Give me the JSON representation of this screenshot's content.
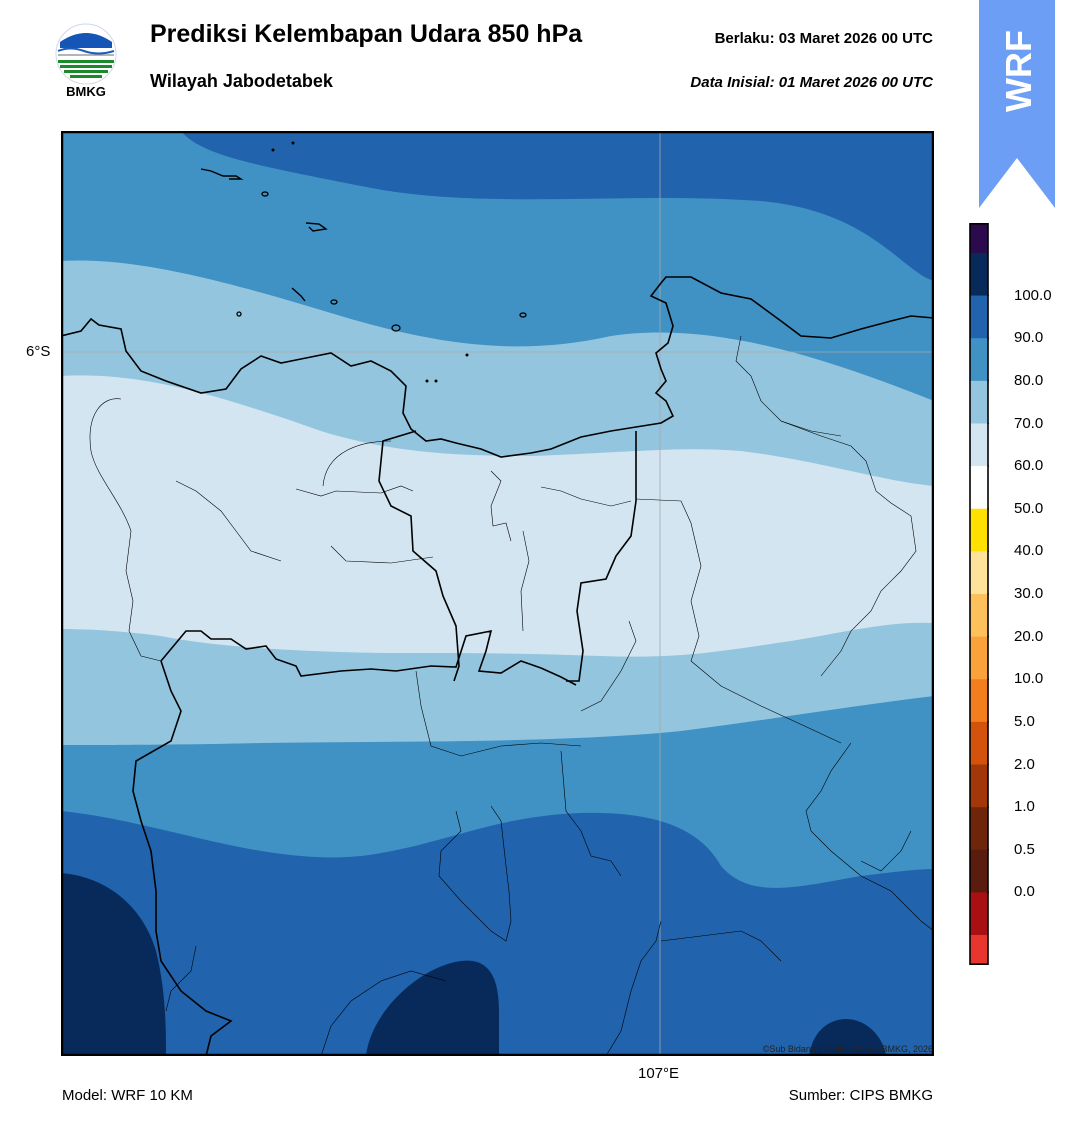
{
  "header": {
    "title": "Prediksi Kelembapan Udara 850 hPa",
    "region": "Wilayah Jabodetabek",
    "valid_label": "Berlaku:  03 Maret 2026 00 UTC",
    "initial_label": "Data Inisial:  01 Maret 2026 00 UTC"
  },
  "logo": {
    "icon": "bmkg-logo-icon",
    "text": "BMKG"
  },
  "badge": {
    "text": "WRF",
    "color": "#6d9ef5"
  },
  "map": {
    "lat_label": "6°S",
    "lon_label": "107°E",
    "copyright": "©Sub Bidang Prediksi Cuaca BMKG, 2026"
  },
  "colorbar": {
    "labels": [
      "100.0",
      "90.0",
      "80.0",
      "70.0",
      "60.0",
      "50.0",
      "40.0",
      "30.0",
      "20.0",
      "10.0",
      "5.0",
      "2.0",
      "1.0",
      "0.5",
      "0.0"
    ],
    "colors_top_to_bottom": [
      "#2b0a4e",
      "#082a5b",
      "#2163ac",
      "#4091c4",
      "#93c5df",
      "#d3e5f1",
      "#ffffff",
      "#ffe000",
      "#ffe39a",
      "#fec05a",
      "#f9a13a",
      "#f37e1d",
      "#d4530c",
      "#a2380a",
      "#6e250a",
      "#5a1c0f",
      "#a81014",
      "#e8362e"
    ]
  },
  "footer": {
    "model": "Model: WRF 10 KM",
    "source": "Sumber: CIPS BMKG"
  }
}
